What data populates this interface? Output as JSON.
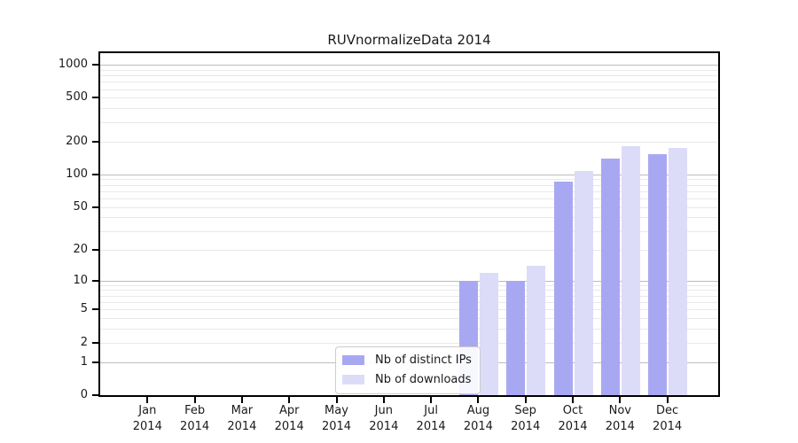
{
  "chart_data": {
    "type": "bar",
    "title": "RUVnormalizeData 2014",
    "categories": [
      "Jan",
      "Feb",
      "Mar",
      "Apr",
      "May",
      "Jun",
      "Jul",
      "Aug",
      "Sep",
      "Oct",
      "Nov",
      "Dec"
    ],
    "category_year": "2014",
    "series": [
      {
        "name": "Nb of distinct IPs",
        "color": "#a8a8f2",
        "values": [
          0,
          0,
          0,
          0,
          0,
          0,
          0,
          10,
          10,
          85,
          140,
          154
        ]
      },
      {
        "name": "Nb of downloads",
        "color": "#dcdcf8",
        "values": [
          0,
          0,
          0,
          0,
          0,
          0,
          0,
          12,
          14,
          108,
          180,
          173
        ]
      }
    ],
    "xlabel": "",
    "ylabel": "",
    "yaxis": {
      "scale": "log1p",
      "ylim": [
        0,
        1272
      ],
      "tick_values": [
        0,
        1,
        2,
        5,
        10,
        20,
        50,
        100,
        200,
        500,
        1000
      ],
      "major_gridlines": [
        1,
        10,
        100,
        1000
      ],
      "minor_gridlines": [
        2,
        3,
        4,
        5,
        6,
        7,
        8,
        9,
        20,
        30,
        40,
        50,
        60,
        70,
        80,
        90,
        200,
        300,
        400,
        500,
        600,
        700,
        800,
        900
      ]
    },
    "grid": true,
    "legend_position": "lower center"
  },
  "colors": {
    "series_ips": "#a8a8f2",
    "series_downloads": "#dcdcf8",
    "major_grid": "#bcbcbc",
    "minor_grid": "#e9e9e9",
    "spine": "#000000",
    "text": "#1a1a1a",
    "legend_border": "#cccccc"
  }
}
